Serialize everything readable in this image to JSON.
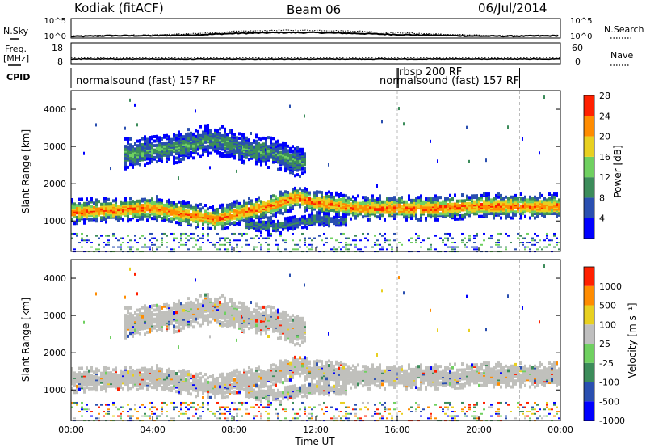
{
  "header": {
    "station": "Kodiak (fitACF)",
    "beam": "Beam 06",
    "date": "06/Jul/2014"
  },
  "left_labels": {
    "nsky": "N.Sky",
    "freq": "Freq.",
    "freq_unit": "[MHz]",
    "cpid": "CPID"
  },
  "right_labels": {
    "nsearch": "N.Search",
    "nave": "Nave"
  },
  "colors": {
    "power_scale": [
      "#0000ff",
      "#2a4fb0",
      "#3c8c5a",
      "#6fd060",
      "#e8d020",
      "#ff8c00",
      "#ff2000"
    ],
    "velocity_scale": [
      "#0000ff",
      "#2a4fb0",
      "#3c8c5a",
      "#6fd060",
      "#bfbfbf",
      "#e8d020",
      "#ff8c00",
      "#ff2000"
    ],
    "scatter_gray": "#c0c0bc"
  },
  "chart_data": [
    {
      "type": "line",
      "panel": "noise",
      "left_ticks": [
        "10^5",
        "10^0"
      ],
      "right_ticks": [
        "10^5",
        "10^0"
      ],
      "series": [
        {
          "name": "N.Sky",
          "x_hours": [
            0,
            2,
            4,
            6,
            8,
            10,
            12,
            14,
            16,
            18,
            20,
            22,
            24
          ],
          "log10_values": [
            0.4,
            0.6,
            0.6,
            0.8,
            1.2,
            1.4,
            1.4,
            1.2,
            0.9,
            0.7,
            0.5,
            0.5,
            0.6
          ]
        },
        {
          "name": "N.Search",
          "x_hours": [
            0,
            2,
            4,
            6,
            8,
            10,
            12,
            14,
            16,
            18,
            20,
            22,
            24
          ],
          "log10_values": [
            0.5,
            0.7,
            0.8,
            1.1,
            1.7,
            2.0,
            2.0,
            1.8,
            1.4,
            1.0,
            0.7,
            0.6,
            0.7
          ]
        }
      ]
    },
    {
      "type": "line",
      "panel": "frequency",
      "left_ticks": [
        "18",
        "8"
      ],
      "right_ticks": [
        "60",
        "0"
      ],
      "series": [
        {
          "name": "Freq.",
          "x_hours": [
            0,
            24
          ],
          "values": [
            10.3,
            10.3
          ]
        },
        {
          "name": "Nave",
          "x_hours": [
            0,
            24
          ],
          "values": [
            18,
            18
          ]
        }
      ]
    },
    {
      "type": "table",
      "panel": "cpid",
      "segments": [
        {
          "label": "normalsound (fast) 157 RF",
          "start_hour": 0.0,
          "end_hour": 16.0
        },
        {
          "label": "rbsp 200 RF",
          "start_hour": 16.0,
          "end_hour": 16.05
        },
        {
          "label": "normalsound (fast) 157 RF",
          "start_hour": 16.05,
          "end_hour": 22.0
        }
      ]
    },
    {
      "type": "heatmap",
      "panel": "power",
      "ylabel": "Slant Range [km]",
      "y_ticks": [
        "1000",
        "2000",
        "3000",
        "4000"
      ],
      "ylim": [
        180,
        4500
      ],
      "colorbar_label": "Power [dB]",
      "colorbar_ticks": [
        "4",
        "8",
        "12",
        "16",
        "20",
        "24",
        "28"
      ],
      "clim": [
        0,
        32
      ],
      "dashed_marker_hours": [
        16.0,
        22.0
      ],
      "bands": [
        {
          "range_center_hours": [
            0,
            2,
            4,
            6,
            7,
            8,
            10,
            11,
            12,
            14,
            16,
            18,
            20,
            22,
            24
          ],
          "range_center_km": [
            1250,
            1300,
            1350,
            1150,
            1050,
            1200,
            1450,
            1650,
            1500,
            1350,
            1350,
            1350,
            1400,
            1400,
            1400
          ],
          "half_width_km": 200,
          "peak_db": 26
        },
        {
          "range_center_hours": [
            3,
            4,
            5,
            6,
            7,
            8,
            9,
            10,
            11
          ],
          "range_center_km": [
            2800,
            2900,
            2950,
            3100,
            3200,
            3000,
            2900,
            2800,
            2600
          ],
          "half_width_km": 250,
          "peak_db": 12
        },
        {
          "range_center_hours": [
            9,
            10,
            11,
            12,
            13
          ],
          "range_center_km": [
            900,
            850,
            950,
            1050,
            1000
          ],
          "half_width_km": 120,
          "peak_db": 10
        }
      ]
    },
    {
      "type": "heatmap",
      "panel": "velocity",
      "ylabel": "Slant Range [km]",
      "y_ticks": [
        "1000",
        "2000",
        "3000",
        "4000"
      ],
      "ylim": [
        180,
        4500
      ],
      "colorbar_label": "Velocity [m s⁻¹]",
      "colorbar_ticks": [
        "1000",
        "500",
        "100",
        "25",
        "-25",
        "-100",
        "-500",
        "-1000"
      ],
      "dashed_marker_hours": [
        16.0,
        22.0
      ]
    }
  ],
  "x_axis": {
    "label": "Time UT",
    "ticks": [
      "00:00",
      "04:00",
      "08:00",
      "12:00",
      "16:00",
      "20:00",
      "00:00"
    ],
    "xlim_hours": [
      0,
      24
    ]
  }
}
